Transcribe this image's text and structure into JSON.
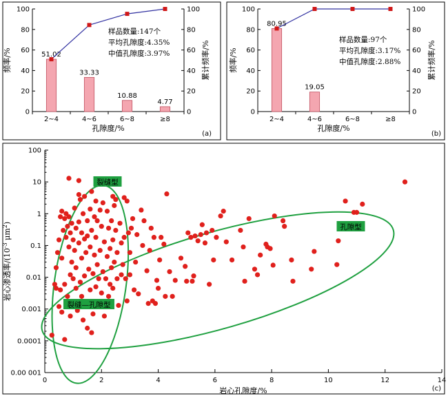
{
  "chart_data": [
    {
      "type": "bar",
      "panel_label": "(a)",
      "categories": [
        "2~4",
        "4~6",
        "6~8",
        "≥8"
      ],
      "series": [
        {
          "values": [
            51.02,
            33.33,
            10.88,
            4.77
          ],
          "data_labels": [
            "51.02",
            "33.33",
            "10.88",
            "4.77"
          ],
          "color": "#f4a6b0"
        },
        {
          "values": [
            51.02,
            84.35,
            95.23,
            100
          ],
          "color": "#3030a0",
          "marker_color": "#d01818"
        }
      ],
      "xlabel": "孔隙度/%",
      "ylabel": "频率/%",
      "y2label": "累计频率/%",
      "ylim": [
        0,
        100
      ],
      "yticks": [
        "0",
        "20",
        "40",
        "60",
        "80",
        "100"
      ],
      "annotations": [
        "样品数量:147个",
        "平均孔隙度:4.35%",
        "中值孔隙度:3.97%"
      ]
    },
    {
      "type": "bar",
      "panel_label": "(b)",
      "categories": [
        "2~4",
        "4~6",
        "6~8",
        "≥8"
      ],
      "series": [
        {
          "values": [
            80.95,
            19.05,
            0,
            0
          ],
          "data_labels": [
            "80.95",
            "19.05"
          ],
          "color": "#f4a6b0"
        },
        {
          "values": [
            80.95,
            100,
            100,
            100
          ],
          "color": "#3030a0",
          "marker_color": "#d01818"
        }
      ],
      "xlabel": "孔隙度/%",
      "ylabel": "频率/%",
      "y2label": "累计频率/%",
      "ylim": [
        0,
        100
      ],
      "yticks": [
        "0",
        "20",
        "40",
        "60",
        "80",
        "100"
      ],
      "annotations": [
        "样品数量:97个",
        "平均孔隙度:3.17%",
        "中值孔隙度:2.88%"
      ]
    },
    {
      "type": "scatter",
      "panel_label": "(c)",
      "xlabel": "岩心孔隙度/%",
      "ylabel_parts": [
        "岩心渗透率/(10",
        "-3",
        " μm",
        "2",
        ")"
      ],
      "xlim": [
        0,
        14
      ],
      "xticks": [
        "0",
        "2",
        "4",
        "6",
        "8",
        "10",
        "12",
        "14"
      ],
      "ylim": [
        1e-05,
        100
      ],
      "log_y": true,
      "yticks": [
        "0.00 001",
        "0.0001",
        "0.001",
        "0.01",
        "0.1",
        "1",
        "10",
        "100"
      ],
      "point_color": "#e0201c",
      "ellipse_color": "#1fa040",
      "zones": [
        "裂缝型",
        "孔隙型",
        "裂缝—孔隙型"
      ],
      "points": [
        [
          0.25,
          0.00015
        ],
        [
          0.35,
          0.006
        ],
        [
          0.4,
          0.0045
        ],
        [
          0.4,
          0.02
        ],
        [
          0.45,
          0.06
        ],
        [
          0.5,
          0.15
        ],
        [
          0.5,
          0.0012
        ],
        [
          0.55,
          0.8
        ],
        [
          0.55,
          0.004
        ],
        [
          0.6,
          1.2
        ],
        [
          0.6,
          0.04
        ],
        [
          0.6,
          0.0008
        ],
        [
          0.65,
          0.3
        ],
        [
          0.7,
          0.7
        ],
        [
          0.7,
          0.006
        ],
        [
          0.7,
          0.00011
        ],
        [
          0.75,
          1.0
        ],
        [
          0.75,
          0.18
        ],
        [
          0.8,
          0.4
        ],
        [
          0.8,
          0.0025
        ],
        [
          0.85,
          13
        ],
        [
          0.85,
          0.8
        ],
        [
          0.85,
          0.09
        ],
        [
          0.9,
          0.25
        ],
        [
          0.9,
          0.012
        ],
        [
          0.9,
          0.0006
        ],
        [
          0.95,
          0.5
        ],
        [
          0.95,
          0.03
        ],
        [
          1.0,
          0.15
        ],
        [
          1.0,
          0.009
        ],
        [
          1.0,
          0.0015
        ],
        [
          1.05,
          1.5
        ],
        [
          1.05,
          0.07
        ],
        [
          1.1,
          0.35
        ],
        [
          1.1,
          0.02
        ],
        [
          1.1,
          0.0045
        ],
        [
          1.15,
          0.0009
        ],
        [
          1.2,
          11
        ],
        [
          1.2,
          4
        ],
        [
          1.2,
          0.55
        ],
        [
          1.2,
          0.12
        ],
        [
          1.25,
          2.8
        ],
        [
          1.25,
          0.007
        ],
        [
          1.3,
          0.25
        ],
        [
          1.3,
          0.04
        ],
        [
          1.3,
          0.0025
        ],
        [
          1.35,
          1.0
        ],
        [
          1.35,
          0.00045
        ],
        [
          1.4,
          3.5
        ],
        [
          1.4,
          0.16
        ],
        [
          1.4,
          0.011
        ],
        [
          1.45,
          0.06
        ],
        [
          1.45,
          0.0012
        ],
        [
          1.5,
          0.6
        ],
        [
          1.5,
          0.2
        ],
        [
          1.5,
          0.00025
        ],
        [
          1.55,
          0.018
        ],
        [
          1.6,
          1.4
        ],
        [
          1.6,
          0.09
        ],
        [
          1.6,
          0.004
        ],
        [
          1.65,
          5
        ],
        [
          1.65,
          0.3
        ],
        [
          1.65,
          0.00018
        ],
        [
          1.7,
          0.013
        ],
        [
          1.7,
          0.0007
        ],
        [
          1.75,
          0.8
        ],
        [
          1.75,
          0.05
        ],
        [
          1.8,
          2.5
        ],
        [
          1.8,
          0.18
        ],
        [
          1.8,
          0.005
        ],
        [
          1.85,
          0.6
        ],
        [
          1.85,
          0.025
        ],
        [
          1.9,
          0.009
        ],
        [
          1.9,
          0.0015
        ],
        [
          1.95,
          1.3
        ],
        [
          1.95,
          0.07
        ],
        [
          2.0,
          0.4
        ],
        [
          2.0,
          0.0032
        ],
        [
          2.05,
          2.2
        ],
        [
          2.05,
          0.015
        ],
        [
          2.1,
          0.13
        ],
        [
          2.1,
          0.0006
        ],
        [
          2.15,
          0.009
        ],
        [
          2.2,
          1.2
        ],
        [
          2.2,
          0.045
        ],
        [
          2.25,
          0.35
        ],
        [
          2.25,
          0.0025
        ],
        [
          2.3,
          0.08
        ],
        [
          2.3,
          0.006
        ],
        [
          2.35,
          0.6
        ],
        [
          2.35,
          0.02
        ],
        [
          2.4,
          3.5
        ],
        [
          2.4,
          0.15
        ],
        [
          2.4,
          0.0045
        ],
        [
          2.45,
          1.8
        ],
        [
          2.45,
          0.03
        ],
        [
          2.5,
          2.8
        ],
        [
          2.5,
          0.3
        ],
        [
          2.55,
          0.06
        ],
        [
          2.55,
          0.009
        ],
        [
          2.6,
          0.0013
        ],
        [
          2.65,
          0.5
        ],
        [
          2.7,
          0.12
        ],
        [
          2.7,
          0.012
        ],
        [
          2.75,
          0.025
        ],
        [
          2.8,
          3.2
        ],
        [
          2.8,
          0.18
        ],
        [
          2.85,
          0.009
        ],
        [
          2.9,
          2.5
        ],
        [
          2.9,
          0.0018
        ],
        [
          2.95,
          0.25
        ],
        [
          3.0,
          0.06
        ],
        [
          3.0,
          0.012
        ],
        [
          3.05,
          0.35
        ],
        [
          3.1,
          0.7
        ],
        [
          3.15,
          0.004
        ],
        [
          3.2,
          0.03
        ],
        [
          3.25,
          0.22
        ],
        [
          3.3,
          0.003
        ],
        [
          3.4,
          1.3
        ],
        [
          3.45,
          0.1
        ],
        [
          3.5,
          0.6
        ],
        [
          3.6,
          0.016
        ],
        [
          3.65,
          0.0015
        ],
        [
          3.7,
          0.07
        ],
        [
          3.75,
          0.35
        ],
        [
          3.8,
          0.0018
        ],
        [
          3.85,
          0.18
        ],
        [
          3.9,
          0.0015
        ],
        [
          3.95,
          0.008
        ],
        [
          4.0,
          0.0045
        ],
        [
          4.05,
          0.035
        ],
        [
          4.1,
          0.18
        ],
        [
          4.2,
          0.11
        ],
        [
          4.25,
          0.0025
        ],
        [
          4.3,
          4.2
        ],
        [
          4.4,
          0.015
        ],
        [
          4.5,
          0.0025
        ],
        [
          4.6,
          0.008
        ],
        [
          4.8,
          0.04
        ],
        [
          4.95,
          0.022
        ],
        [
          5.0,
          0.0075
        ],
        [
          5.05,
          0.25
        ],
        [
          5.15,
          0.18
        ],
        [
          5.2,
          0.0075
        ],
        [
          5.25,
          0.011
        ],
        [
          5.3,
          0.2
        ],
        [
          5.4,
          0.14
        ],
        [
          5.5,
          0.22
        ],
        [
          5.55,
          0.45
        ],
        [
          5.65,
          0.12
        ],
        [
          5.7,
          0.25
        ],
        [
          5.8,
          0.006
        ],
        [
          5.9,
          0.3
        ],
        [
          5.95,
          0.035
        ],
        [
          6.05,
          0.18
        ],
        [
          6.2,
          0.85
        ],
        [
          6.3,
          1.2
        ],
        [
          6.4,
          0.13
        ],
        [
          6.6,
          0.035
        ],
        [
          6.9,
          0.3
        ],
        [
          7.0,
          0.09
        ],
        [
          7.05,
          0.0075
        ],
        [
          7.2,
          0.7
        ],
        [
          7.4,
          0.018
        ],
        [
          7.5,
          0.012
        ],
        [
          7.6,
          0.05
        ],
        [
          7.8,
          0.11
        ],
        [
          7.85,
          0.09
        ],
        [
          7.95,
          0.08
        ],
        [
          8.05,
          0.024
        ],
        [
          8.1,
          0.85
        ],
        [
          8.4,
          0.6
        ],
        [
          8.45,
          0.4
        ],
        [
          8.7,
          0.035
        ],
        [
          8.75,
          0.0075
        ],
        [
          9.4,
          0.018
        ],
        [
          9.5,
          0.065
        ],
        [
          10.3,
          0.025
        ],
        [
          10.35,
          0.14
        ],
        [
          10.6,
          2.5
        ],
        [
          10.9,
          1.1
        ],
        [
          11.0,
          1.1
        ],
        [
          11.2,
          2.0
        ],
        [
          12.7,
          10
        ]
      ]
    }
  ]
}
